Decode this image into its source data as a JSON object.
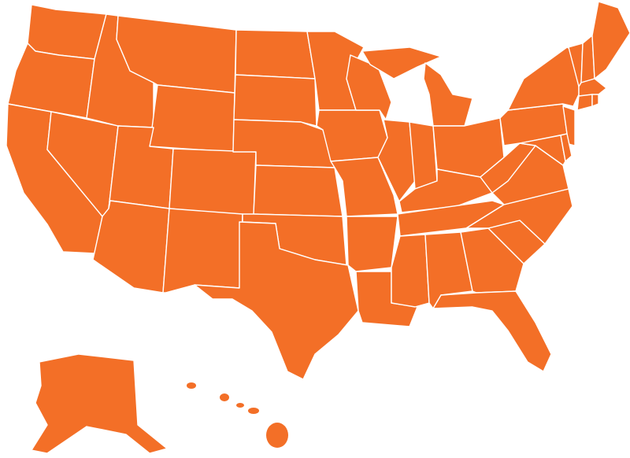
{
  "map": {
    "type": "choropleth",
    "region": "United States",
    "fill_color": "#F36F27",
    "border_color": "#FFFFFF",
    "background_color": "#FFFFFF",
    "labels_shown": false,
    "states": [
      "WA",
      "OR",
      "CA",
      "NV",
      "ID",
      "MT",
      "WY",
      "UT",
      "CO",
      "AZ",
      "NM",
      "ND",
      "SD",
      "NE",
      "KS",
      "OK",
      "TX",
      "MN",
      "IA",
      "MO",
      "AR",
      "LA",
      "WI",
      "IL",
      "MI",
      "IN",
      "OH",
      "KY",
      "TN",
      "MS",
      "AL",
      "GA",
      "FL",
      "SC",
      "NC",
      "VA",
      "WV",
      "PA",
      "NY",
      "NJ",
      "MD",
      "DE",
      "VT",
      "NH",
      "ME",
      "MA",
      "CT",
      "RI",
      "AK",
      "HI"
    ]
  }
}
